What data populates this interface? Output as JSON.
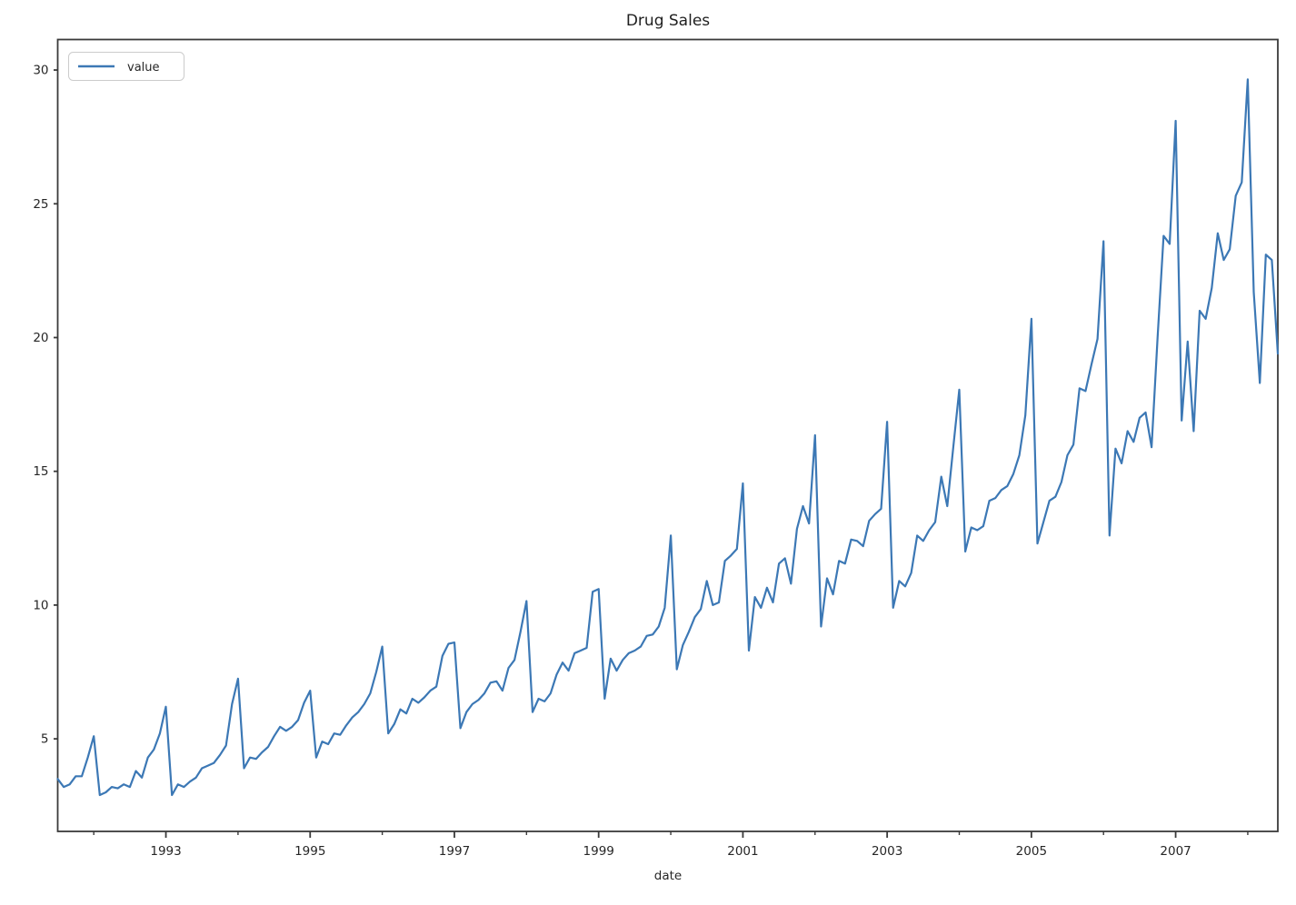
{
  "chart_data": {
    "type": "line",
    "title": "Drug Sales",
    "xlabel": "date",
    "ylabel": "",
    "grid": false,
    "legend": {
      "label": "value",
      "position": "upper left"
    },
    "x_start": "1991-07",
    "x_end": "2008-06",
    "frequency": "monthly",
    "n_points": 204,
    "ylim": [
      1.54,
      31.14
    ],
    "y_ticks": [
      5,
      10,
      15,
      20,
      25,
      30
    ],
    "x_major_tick_years": [
      "1993",
      "1995",
      "1997",
      "1999",
      "2001",
      "2003",
      "2005",
      "2007"
    ],
    "x_minor_tick_years": [
      1992,
      1994,
      1996,
      1998,
      2000,
      2002,
      2004,
      2006,
      2008
    ],
    "colors": {
      "line": "#3c78b5",
      "spine": "#3a3a3a",
      "tick": "#3a3a3a",
      "legend_border": "#cccccc",
      "background": "#ffffff"
    },
    "series": [
      {
        "name": "value",
        "values": [
          3.5,
          3.2,
          3.3,
          3.6,
          3.6,
          4.3,
          5.1,
          2.9,
          3.0,
          3.2,
          3.15,
          3.3,
          3.2,
          3.8,
          3.55,
          4.3,
          4.6,
          5.2,
          6.2,
          2.9,
          3.3,
          3.2,
          3.4,
          3.55,
          3.9,
          4.0,
          4.1,
          4.4,
          4.75,
          6.3,
          7.25,
          3.9,
          4.3,
          4.25,
          4.5,
          4.7,
          5.1,
          5.45,
          5.3,
          5.45,
          5.7,
          6.35,
          6.8,
          4.3,
          4.9,
          4.8,
          5.2,
          5.15,
          5.5,
          5.8,
          6.0,
          6.3,
          6.7,
          7.5,
          8.45,
          5.2,
          5.55,
          6.1,
          5.95,
          6.5,
          6.35,
          6.55,
          6.8,
          6.95,
          8.1,
          8.55,
          8.6,
          5.4,
          6.0,
          6.3,
          6.45,
          6.7,
          7.1,
          7.15,
          6.8,
          7.65,
          7.95,
          9.0,
          10.15,
          6.0,
          6.5,
          6.4,
          6.7,
          7.4,
          7.85,
          7.55,
          8.2,
          8.3,
          8.4,
          10.5,
          10.6,
          6.5,
          8.0,
          7.55,
          7.95,
          8.2,
          8.3,
          8.45,
          8.85,
          8.9,
          9.2,
          9.9,
          12.6,
          7.6,
          8.5,
          9.0,
          9.55,
          9.85,
          10.9,
          10.0,
          10.1,
          11.65,
          11.85,
          12.1,
          14.55,
          8.3,
          10.3,
          9.9,
          10.65,
          10.1,
          11.55,
          11.75,
          10.8,
          12.85,
          13.7,
          13.05,
          16.35,
          9.2,
          11.0,
          10.4,
          11.65,
          11.55,
          12.45,
          12.4,
          12.2,
          13.15,
          13.4,
          13.6,
          16.85,
          9.9,
          10.9,
          10.7,
          11.2,
          12.6,
          12.4,
          12.8,
          13.1,
          14.8,
          13.7,
          15.9,
          18.05,
          12.0,
          12.9,
          12.8,
          12.95,
          13.9,
          14.0,
          14.3,
          14.45,
          14.9,
          15.6,
          17.1,
          20.7,
          12.3,
          13.1,
          13.9,
          14.05,
          14.6,
          15.6,
          16.0,
          18.1,
          18.0,
          19.0,
          19.95,
          23.6,
          12.6,
          15.85,
          15.3,
          16.5,
          16.1,
          17.0,
          17.2,
          15.9,
          20.0,
          23.8,
          23.5,
          28.1,
          16.9,
          19.85,
          16.5,
          21.0,
          20.7,
          21.85,
          23.9,
          22.9,
          23.3,
          25.3,
          25.8,
          29.65,
          21.7,
          18.3,
          23.1,
          22.9,
          19.4
        ]
      }
    ]
  }
}
